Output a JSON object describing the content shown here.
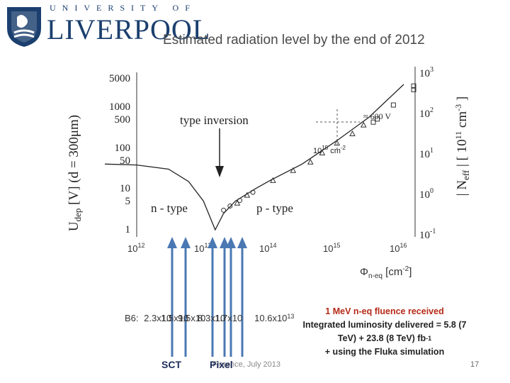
{
  "header": {
    "university_line": "UNIVERSITY OF",
    "university_name": "LIVERPOOL",
    "title": "Estimated radiation level by the end of 2012"
  },
  "colors": {
    "brand": "#1b3f6e",
    "arrow": "#4a78b3",
    "highlight": "#b52a18"
  },
  "chart_data": {
    "type": "line",
    "left_axis_label_main": "U",
    "left_axis_label_sub": "dep",
    "left_axis_label_rest": " [V]  (d = 300μm)",
    "right_axis_label_main": "| N",
    "right_axis_label_sub": "eff",
    "right_axis_label_rest": " |  [ 10",
    "right_axis_label_exp": "11",
    "right_axis_label_unit": " cm",
    "right_axis_label_unit_exp": "-3",
    "right_axis_label_close": " ]",
    "left_ticks": [
      "5000",
      "1000",
      "500",
      "100",
      "50",
      "10",
      "5",
      "1"
    ],
    "right_ticks": [
      {
        "base": "10",
        "exp": "3"
      },
      {
        "base": "10",
        "exp": "2"
      },
      {
        "base": "10",
        "exp": "1"
      },
      {
        "base": "10",
        "exp": "0"
      },
      {
        "base": "10",
        "exp": "-1"
      }
    ],
    "x_ticks": [
      {
        "base": "10",
        "exp": "12"
      },
      {
        "base": "10",
        "exp": "13"
      },
      {
        "base": "10",
        "exp": "14"
      },
      {
        "base": "10",
        "exp": "15"
      },
      {
        "base": "10",
        "exp": "16"
      }
    ],
    "x_label_main": "Φ",
    "x_label_sub": "n-eq",
    "x_label_unit": " [cm",
    "x_label_unit_exp": "-2",
    "x_label_close": "]",
    "annotation_inversion": "type inversion",
    "annotation_ntype": "n - type",
    "annotation_ptype": "p - type",
    "annotation_600v": "≈ 600 V",
    "annotation_fluence_base": "10",
    "annotation_fluence_exp": "15",
    "annotation_fluence_unit": " cm",
    "annotation_fluence_unit_exp": "-2",
    "curve_points": [
      [
        100000000000.0,
        40
      ],
      [
        1000000000000.0,
        38
      ],
      [
        3000000000000.0,
        30
      ],
      [
        6000000000000.0,
        15
      ],
      [
        10000000000000.0,
        5
      ],
      [
        15000000000000.0,
        1
      ],
      [
        20000000000000.0,
        2.5
      ],
      [
        30000000000000.0,
        5
      ],
      [
        60000000000000.0,
        10
      ],
      [
        100000000000000.0,
        16
      ],
      [
        300000000000000.0,
        40
      ],
      [
        1000000000000000.0,
        150
      ],
      [
        3000000000000000.0,
        550
      ],
      [
        1e+16,
        3500
      ]
    ],
    "triangle_points": [
      [
        32000000000000.0,
        4.5
      ],
      [
        45000000000000.0,
        7
      ],
      [
        110000000000000.0,
        16
      ],
      [
        220000000000000.0,
        28
      ],
      [
        400000000000000.0,
        45
      ],
      [
        600000000000000.0,
        75
      ],
      [
        1000000000000000.0,
        130
      ],
      [
        1700000000000000.0,
        220
      ],
      [
        2500000000000000.0,
        360
      ]
    ],
    "circle_points": [
      [
        20000000000000.0,
        3
      ],
      [
        25000000000000.0,
        3.8
      ],
      [
        35000000000000.0,
        5.2
      ],
      [
        55000000000000.0,
        8.2
      ]
    ],
    "square_points": [
      [
        3500000000000000.0,
        420
      ],
      [
        4000000000000000.0,
        500
      ],
      [
        7000000000000000.0,
        1100
      ],
      [
        1.5e+16,
        2600
      ],
      [
        2e+16,
        3200
      ]
    ]
  },
  "annotation": {
    "fluence_heading": "1 MeV n-eq fluence received",
    "fluence_detail_1": "Integrated luminosity delivered = 5.8 (7",
    "fluence_detail_2": "TeV) + 23.8 (8 TeV) fb",
    "fluence_detail_2_exp": "-1",
    "fluence_detail_3": "+ using the Fluka simulation"
  },
  "b6": {
    "label": "B6:",
    "overlapping_values": [
      "2.3x10",
      "1.5x10",
      "9.5x10",
      "8.3x10",
      "1.7x10",
      "10.6x10"
    ],
    "tail": "10.6x10",
    "tail_exp": "13"
  },
  "footer": {
    "sct_label": "SCT",
    "pixel_label": "Pixel",
    "footer_text": "Florence, July 2013",
    "page_number": "17"
  }
}
